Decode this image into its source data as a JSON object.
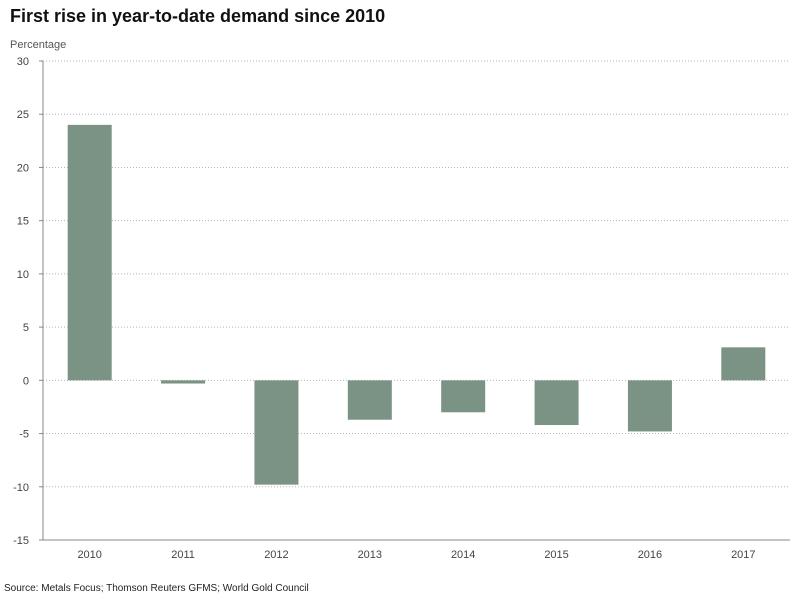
{
  "chart_data": {
    "type": "bar",
    "title": "First rise in year-to-date demand since 2010",
    "ylabel": "Percentage",
    "xlabel": "",
    "categories": [
      "2010",
      "2011",
      "2012",
      "2013",
      "2014",
      "2015",
      "2016",
      "2017"
    ],
    "values": [
      24.0,
      -0.3,
      -9.8,
      -3.7,
      -3.0,
      -4.2,
      -4.8,
      3.1
    ],
    "ylim": [
      -15,
      30
    ],
    "yticks": [
      -15,
      -10,
      -5,
      0,
      5,
      10,
      15,
      20,
      25,
      30
    ],
    "grid": true,
    "bar_color": "#7a9384",
    "source": "Source: Metals Focus; Thomson Reuters GFMS; World Gold Council"
  }
}
